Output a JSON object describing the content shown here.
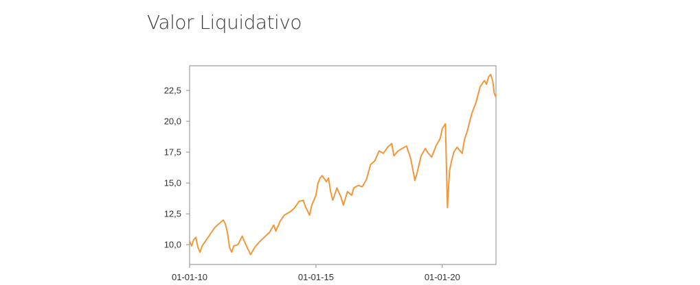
{
  "page": {
    "title": "Valor Liquidativo"
  },
  "chart_data": {
    "type": "line",
    "title": "",
    "xlabel": "",
    "ylabel": "",
    "x_ticks": [
      "01-01-10",
      "01-01-15",
      "01-01-20"
    ],
    "x_tick_dates": [
      "2010-01-01",
      "2015-01-01",
      "2020-01-01"
    ],
    "y_ticks": [
      "10,0",
      "12,5",
      "15,0",
      "17,5",
      "20,0",
      "22,5"
    ],
    "y_tick_values": [
      10.0,
      12.5,
      15.0,
      17.5,
      20.0,
      22.5
    ],
    "xlim": [
      "2010-01-01",
      "2022-02-15"
    ],
    "ylim": [
      8.4,
      24.5
    ],
    "grid": true,
    "legend": "none",
    "colors": {
      "line": "#f2963a",
      "grid": "#c8c8c8",
      "axis": "#8a8a8a"
    },
    "series": [
      {
        "x": [
          "2010-01-01",
          "2010-02-01",
          "2010-03-01",
          "2010-04-01",
          "2010-05-01",
          "2010-06-01",
          "2010-07-01",
          "2010-09-01",
          "2010-11-01",
          "2011-01-01",
          "2011-03-01",
          "2011-05-01",
          "2011-06-01",
          "2011-07-01",
          "2011-08-01",
          "2011-09-01",
          "2011-10-01",
          "2011-12-01",
          "2012-02-01",
          "2012-04-01",
          "2012-06-01",
          "2012-08-01",
          "2012-10-01",
          "2013-01-01",
          "2013-03-01",
          "2013-05-01",
          "2013-06-01",
          "2013-08-01",
          "2013-10-01",
          "2014-01-01",
          "2014-03-01",
          "2014-05-01",
          "2014-07-01",
          "2014-08-01",
          "2014-10-01",
          "2014-11-01",
          "2015-01-01",
          "2015-02-01",
          "2015-03-01",
          "2015-04-01",
          "2015-06-01",
          "2015-07-01",
          "2015-08-01",
          "2015-09-01",
          "2015-11-01",
          "2016-01-01",
          "2016-02-01",
          "2016-04-01",
          "2016-06-01",
          "2016-07-01",
          "2016-09-01",
          "2016-11-01",
          "2017-01-01",
          "2017-03-01",
          "2017-05-01",
          "2017-07-01",
          "2017-09-01",
          "2017-11-01",
          "2018-01-01",
          "2018-02-01",
          "2018-04-01",
          "2018-06-01",
          "2018-08-01",
          "2018-10-01",
          "2018-12-01",
          "2019-01-01",
          "2019-03-01",
          "2019-05-01",
          "2019-06-01",
          "2019-08-01",
          "2019-10-01",
          "2019-12-01",
          "2020-01-01",
          "2020-02-15",
          "2020-03-15",
          "2020-04-15",
          "2020-05-15",
          "2020-06-15",
          "2020-08-01",
          "2020-09-15",
          "2020-10-15",
          "2020-11-15",
          "2021-01-01",
          "2021-03-01",
          "2021-05-01",
          "2021-07-01",
          "2021-09-01",
          "2021-10-01",
          "2021-11-01",
          "2021-12-01",
          "2022-01-01",
          "2022-01-20",
          "2022-02-10"
        ],
        "values": [
          10.3,
          9.9,
          10.4,
          10.6,
          9.8,
          9.4,
          9.9,
          10.4,
          10.9,
          11.4,
          11.7,
          12.0,
          11.7,
          11.0,
          9.8,
          9.4,
          9.9,
          10.0,
          10.7,
          9.9,
          9.2,
          9.8,
          10.2,
          10.7,
          11.0,
          11.6,
          11.1,
          11.9,
          12.4,
          12.7,
          13.0,
          13.5,
          13.6,
          13.1,
          12.4,
          13.2,
          14.0,
          15.0,
          15.4,
          15.6,
          15.1,
          15.4,
          14.3,
          13.6,
          14.6,
          13.8,
          13.2,
          14.3,
          14.0,
          14.6,
          14.8,
          14.7,
          15.3,
          16.5,
          16.8,
          17.6,
          17.4,
          17.9,
          18.2,
          17.2,
          17.6,
          17.8,
          18.0,
          17.0,
          15.2,
          15.8,
          17.2,
          17.8,
          17.5,
          17.1,
          18.0,
          18.6,
          19.4,
          19.8,
          13.0,
          16.0,
          16.8,
          17.5,
          17.9,
          17.6,
          17.4,
          18.5,
          19.3,
          20.6,
          21.5,
          22.8,
          23.3,
          23.0,
          23.6,
          23.8,
          23.2,
          22.3,
          22.0
        ]
      }
    ]
  }
}
